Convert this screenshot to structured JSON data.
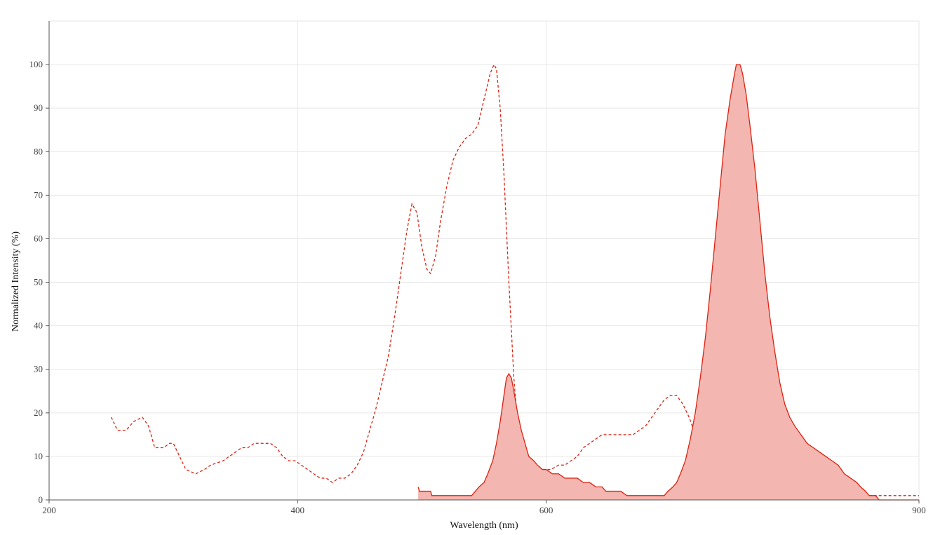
{
  "chart_data": {
    "type": "line",
    "title": "",
    "xlabel": "Wavelength (nm)",
    "ylabel": "Normalized Intensity (%)",
    "xlim": [
      200,
      900
    ],
    "ylim": [
      0,
      110
    ],
    "x_ticks": [
      200,
      400,
      600,
      900
    ],
    "y_ticks": [
      0,
      10,
      20,
      30,
      40,
      50,
      60,
      70,
      80,
      90,
      100
    ],
    "x_grid": [
      400,
      600,
      900
    ],
    "grid": true,
    "legend": "none",
    "series": [
      {
        "style": "dashed",
        "role": "excitation",
        "color": "#dd2211",
        "points": [
          [
            250,
            19
          ],
          [
            255,
            16
          ],
          [
            262,
            16
          ],
          [
            268,
            18
          ],
          [
            275,
            19
          ],
          [
            280,
            17
          ],
          [
            285,
            12
          ],
          [
            292,
            12
          ],
          [
            297,
            13
          ],
          [
            300,
            13
          ],
          [
            305,
            10
          ],
          [
            310,
            7
          ],
          [
            318,
            6
          ],
          [
            325,
            7
          ],
          [
            330,
            8
          ],
          [
            340,
            9
          ],
          [
            345,
            10
          ],
          [
            350,
            11
          ],
          [
            355,
            12
          ],
          [
            360,
            12
          ],
          [
            365,
            13
          ],
          [
            372,
            13
          ],
          [
            378,
            13
          ],
          [
            383,
            12
          ],
          [
            388,
            10
          ],
          [
            393,
            9
          ],
          [
            398,
            9
          ],
          [
            403,
            8
          ],
          [
            408,
            7
          ],
          [
            413,
            6
          ],
          [
            418,
            5
          ],
          [
            423,
            5
          ],
          [
            428,
            4
          ],
          [
            433,
            5
          ],
          [
            438,
            5
          ],
          [
            443,
            6
          ],
          [
            448,
            8
          ],
          [
            453,
            11
          ],
          [
            458,
            16
          ],
          [
            463,
            21
          ],
          [
            468,
            27
          ],
          [
            473,
            33
          ],
          [
            478,
            42
          ],
          [
            483,
            52
          ],
          [
            488,
            62
          ],
          [
            492,
            68
          ],
          [
            496,
            66
          ],
          [
            500,
            58
          ],
          [
            504,
            53
          ],
          [
            507,
            52
          ],
          [
            511,
            56
          ],
          [
            515,
            64
          ],
          [
            520,
            72
          ],
          [
            525,
            78
          ],
          [
            530,
            81
          ],
          [
            535,
            83
          ],
          [
            540,
            84
          ],
          [
            545,
            86
          ],
          [
            550,
            92
          ],
          [
            555,
            98
          ],
          [
            558,
            100
          ],
          [
            560,
            99
          ],
          [
            563,
            90
          ],
          [
            566,
            75
          ],
          [
            570,
            50
          ],
          [
            574,
            28
          ],
          [
            578,
            14
          ],
          [
            582,
            10
          ],
          [
            587,
            8
          ],
          [
            592,
            7
          ],
          [
            598,
            7
          ],
          [
            604,
            7
          ],
          [
            610,
            8
          ],
          [
            615,
            8
          ],
          [
            620,
            9
          ],
          [
            625,
            10
          ],
          [
            630,
            12
          ],
          [
            635,
            13
          ],
          [
            640,
            14
          ],
          [
            645,
            15
          ],
          [
            650,
            15
          ],
          [
            655,
            15
          ],
          [
            660,
            15
          ],
          [
            665,
            15
          ],
          [
            670,
            15
          ],
          [
            675,
            16
          ],
          [
            680,
            17
          ],
          [
            685,
            19
          ],
          [
            690,
            21
          ],
          [
            695,
            23
          ],
          [
            700,
            24
          ],
          [
            705,
            24
          ],
          [
            710,
            22
          ],
          [
            715,
            19
          ],
          [
            720,
            15
          ],
          [
            725,
            12
          ],
          [
            730,
            9
          ],
          [
            735,
            7
          ],
          [
            740,
            5
          ],
          [
            745,
            4
          ],
          [
            750,
            3
          ],
          [
            755,
            3
          ],
          [
            760,
            2
          ],
          [
            765,
            2
          ],
          [
            770,
            2
          ],
          [
            775,
            2
          ],
          [
            780,
            2
          ],
          [
            785,
            1
          ],
          [
            800,
            1
          ],
          [
            850,
            1
          ],
          [
            880,
            1
          ],
          [
            900,
            1
          ]
        ]
      },
      {
        "style": "solid-filled",
        "role": "emission",
        "color": "#dd2211",
        "fill": "#f4b6b0",
        "points": [
          [
            497,
            3
          ],
          [
            498,
            2
          ],
          [
            502,
            2
          ],
          [
            507,
            2
          ],
          [
            508,
            1
          ],
          [
            515,
            1
          ],
          [
            525,
            1
          ],
          [
            535,
            1
          ],
          [
            540,
            1
          ],
          [
            543,
            2
          ],
          [
            546,
            3
          ],
          [
            550,
            4
          ],
          [
            553,
            6
          ],
          [
            557,
            9
          ],
          [
            560,
            13
          ],
          [
            563,
            18
          ],
          [
            566,
            24
          ],
          [
            568,
            28
          ],
          [
            570,
            29
          ],
          [
            572,
            28
          ],
          [
            574,
            25
          ],
          [
            577,
            20
          ],
          [
            580,
            16
          ],
          [
            583,
            13
          ],
          [
            586,
            10
          ],
          [
            590,
            9
          ],
          [
            593,
            8
          ],
          [
            597,
            7
          ],
          [
            600,
            7
          ],
          [
            605,
            6
          ],
          [
            610,
            6
          ],
          [
            615,
            5
          ],
          [
            620,
            5
          ],
          [
            625,
            5
          ],
          [
            630,
            4
          ],
          [
            635,
            4
          ],
          [
            640,
            3
          ],
          [
            645,
            3
          ],
          [
            648,
            2
          ],
          [
            655,
            2
          ],
          [
            660,
            2
          ],
          [
            665,
            1
          ],
          [
            680,
            1
          ],
          [
            690,
            1
          ],
          [
            695,
            1
          ],
          [
            698,
            2
          ],
          [
            702,
            3
          ],
          [
            705,
            4
          ],
          [
            708,
            6
          ],
          [
            712,
            9
          ],
          [
            716,
            14
          ],
          [
            720,
            20
          ],
          [
            724,
            28
          ],
          [
            728,
            37
          ],
          [
            732,
            48
          ],
          [
            736,
            60
          ],
          [
            740,
            72
          ],
          [
            744,
            84
          ],
          [
            748,
            92
          ],
          [
            751,
            97
          ],
          [
            753,
            100
          ],
          [
            756,
            100
          ],
          [
            758,
            98
          ],
          [
            761,
            93
          ],
          [
            764,
            86
          ],
          [
            768,
            76
          ],
          [
            772,
            64
          ],
          [
            776,
            52
          ],
          [
            780,
            42
          ],
          [
            784,
            34
          ],
          [
            788,
            27
          ],
          [
            792,
            22
          ],
          [
            796,
            19
          ],
          [
            800,
            17
          ],
          [
            805,
            15
          ],
          [
            810,
            13
          ],
          [
            815,
            12
          ],
          [
            820,
            11
          ],
          [
            825,
            10
          ],
          [
            830,
            9
          ],
          [
            835,
            8
          ],
          [
            840,
            6
          ],
          [
            845,
            5
          ],
          [
            850,
            4
          ],
          [
            853,
            3
          ],
          [
            857,
            2
          ],
          [
            860,
            1
          ],
          [
            865,
            1
          ],
          [
            868,
            0
          ],
          [
            880,
            0
          ],
          [
            900,
            0
          ]
        ]
      }
    ]
  }
}
